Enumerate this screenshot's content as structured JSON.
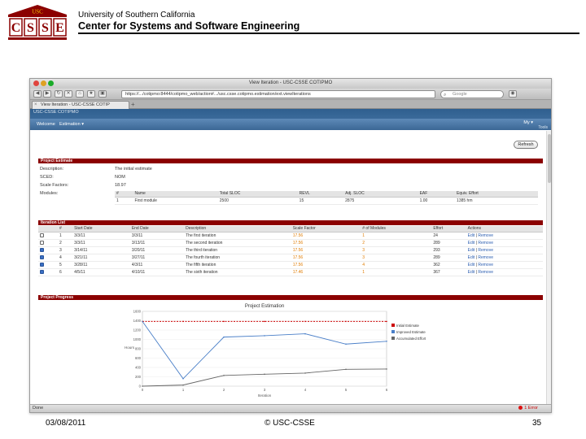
{
  "slide": {
    "logo_top": "USC",
    "logo_letters": [
      "C",
      "S",
      "S",
      "E"
    ],
    "university": "University of Southern California",
    "center": "Center for Systems and Software Engineering",
    "footer_date": "03/08/2011",
    "footer_copyright": "© USC-CSSE",
    "footer_page": "35"
  },
  "browser": {
    "window_title": "View Iteration - USC-CSSE COTIPMO",
    "url": "https://.../cotipmo:8444/cotipmo_web/action#.../usc.csse.cotipmo.estimation/ext.viewIterations",
    "search_placeholder": "Google",
    "tab_title": "View Iteration - USC-CSSE COTIP",
    "status_text": "Done",
    "status_error": "1 Error"
  },
  "app": {
    "name": "USC-CSSE COTIPMO",
    "menu": [
      "Welcome",
      "Estimation ▾"
    ],
    "user_menu": "My ▾",
    "tools": "Tools",
    "refresh_label": "Refresh"
  },
  "project_estimate": {
    "title": "Project Estimate",
    "fields": [
      {
        "label": "Description:",
        "value": "The initial estimate"
      },
      {
        "label": "SCED:",
        "value": "NOM"
      },
      {
        "label": "Scale Factors:",
        "value": "18.97"
      },
      {
        "label": "Modules:",
        "value": ""
      }
    ],
    "modules_columns": [
      "#",
      "Name",
      "Total SLOC",
      "REVL",
      "Adj. SLOC",
      "EAF",
      "Equiv. Effort"
    ],
    "modules_rows": [
      [
        "1",
        "First module",
        "2500",
        "15",
        "2875",
        "1.00",
        "1385 hm"
      ]
    ]
  },
  "iteration_list": {
    "title": "Iteration List",
    "columns": [
      "",
      "#",
      "Start Date",
      "End Date",
      "Description",
      "Scale Factor",
      "# of Modules",
      "Effort",
      "Actions"
    ],
    "rows": [
      {
        "checked": false,
        "n": "1",
        "start": "3/3/11",
        "end": "3/3/11",
        "desc": "The first iteration",
        "scale": "17.56",
        "modules": "1",
        "effort": "24",
        "edit": "Edit",
        "remove": "Remove"
      },
      {
        "checked": false,
        "n": "2",
        "start": "3/3/11",
        "end": "3/13/11",
        "desc": "The second iteration",
        "scale": "17.56",
        "modules": "2",
        "effort": "289",
        "edit": "Edit",
        "remove": "Remove"
      },
      {
        "checked": true,
        "n": "3",
        "start": "3/14/11",
        "end": "3/20/11",
        "desc": "The third iteration",
        "scale": "17.56",
        "modules": "3",
        "effort": "293",
        "edit": "Edit",
        "remove": "Remove"
      },
      {
        "checked": true,
        "n": "4",
        "start": "3/21/11",
        "end": "3/27/11",
        "desc": "The fourth iteration",
        "scale": "17.56",
        "modules": "3",
        "effort": "289",
        "edit": "Edit",
        "remove": "Remove"
      },
      {
        "checked": true,
        "n": "5",
        "start": "3/28/11",
        "end": "4/3/11",
        "desc": "The fifth iteration",
        "scale": "17.56",
        "modules": "4",
        "effort": "362",
        "edit": "Edit",
        "remove": "Remove"
      },
      {
        "checked": true,
        "n": "6",
        "start": "4/5/11",
        "end": "4/10/11",
        "desc": "The sixth iteration",
        "scale": "17.46",
        "modules": "1",
        "effort": "367",
        "edit": "Edit",
        "remove": "Remove"
      }
    ]
  },
  "project_progress": {
    "title": "Project Progress"
  },
  "chart_data": {
    "type": "line",
    "title": "Project Estimation",
    "xlabel": "Iteration",
    "ylabel": "Hours",
    "x": [
      0,
      1,
      2,
      3,
      4,
      5,
      6
    ],
    "xlim": [
      0,
      6
    ],
    "ylim": [
      0,
      1600
    ],
    "yticks": [
      0,
      200,
      400,
      600,
      800,
      1000,
      1200,
      1400,
      1600
    ],
    "legend_position": "right",
    "series": [
      {
        "name": "Initial Estimate",
        "color": "#cc0000",
        "style": "dashed",
        "values": [
          1385,
          1385,
          1385,
          1385,
          1385,
          1385,
          1385
        ]
      },
      {
        "name": "Improved Estimate",
        "color": "#4a7fc8",
        "style": "solid",
        "values": [
          1385,
          160,
          1050,
          1080,
          1120,
          900,
          960
        ]
      },
      {
        "name": "Accumulated Effort",
        "color": "#666666",
        "style": "solid",
        "values": [
          0,
          24,
          230,
          255,
          280,
          360,
          367
        ]
      }
    ]
  }
}
